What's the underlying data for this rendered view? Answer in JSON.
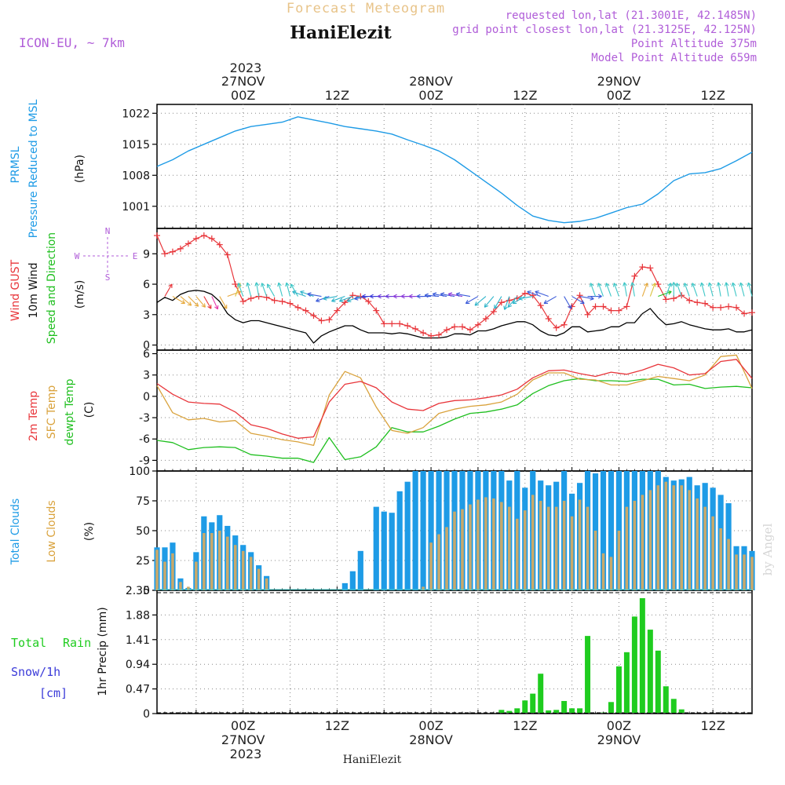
{
  "header": {
    "product": "Forecast Meteogram",
    "location": "HaniElezit",
    "model": "ICON-EU, ~ 7km",
    "requested": "requested lon,lat (21.3001E, 42.1485N)",
    "gridpoint": "grid point closest lon,lat (21.3125E, 42.125N)",
    "point_altitude": "Point Altitude 375m",
    "model_altitude": "Model Point Altitude 659m",
    "footer_location": "HaniElezit",
    "watermark": "by Angel"
  },
  "time_axis": {
    "top_year": "2023",
    "bottom_year": "2023",
    "labels": [
      {
        "t": 0,
        "hour": "00Z",
        "date": "27NOV"
      },
      {
        "t": 12,
        "hour": "12Z",
        "date": ""
      },
      {
        "t": 24,
        "hour": "00Z",
        "date": "28NOV"
      },
      {
        "t": 36,
        "hour": "12Z",
        "date": ""
      },
      {
        "t": 48,
        "hour": "00Z",
        "date": "29NOV"
      },
      {
        "t": 60,
        "hour": "12Z",
        "date": ""
      }
    ],
    "t_min": -11,
    "t_max": 65
  },
  "colors": {
    "pressure": "#1e9be6",
    "gust": "#e8353a",
    "wind": "#000000",
    "t2m": "#e8353a",
    "sfc": "#d9a23c",
    "dewpt": "#1fbf1f",
    "total_clouds": "#1e9be6",
    "low_clouds": "#c9a96a",
    "rain": "#1fcc1f",
    "snow": "#3b3bd9",
    "meta": "#b05dd8",
    "title_orange": "#e8c48a",
    "label_green": "#1fbf1f"
  },
  "panel_labels": {
    "pressure": [
      "PRMSL",
      "Pressure Reduced to MSL",
      "(hPa)"
    ],
    "wind": [
      "Wind GUST",
      "10m Wind",
      "Speed and Direction",
      "(m/s)"
    ],
    "compass": [
      "N",
      "W",
      "E",
      "S"
    ],
    "temp": [
      "2m Temp",
      "SFC Temp",
      "dewpt Temp",
      "(C)"
    ],
    "clouds": [
      "Total Clouds",
      "Low Clouds",
      "(%)"
    ],
    "precip_left": [
      "Total",
      "Rain",
      "Snow/1h",
      "[cm]"
    ],
    "precip_axis": "1hr Precip (mm)"
  },
  "chart_data": [
    {
      "type": "line",
      "name": "pressure",
      "ylim": [
        996,
        1024
      ],
      "yticks": [
        "1001",
        "1008",
        "1015",
        "1022"
      ],
      "x": [
        -11,
        -9,
        -7,
        -5,
        -3,
        -1,
        1,
        3,
        5,
        7,
        9,
        11,
        13,
        15,
        17,
        19,
        21,
        23,
        25,
        27,
        29,
        31,
        33,
        35,
        37,
        39,
        41,
        43,
        45,
        47,
        49,
        51,
        53,
        55,
        57,
        59,
        61,
        63,
        65
      ],
      "values": [
        1010,
        1011.5,
        1013.5,
        1015,
        1016.5,
        1018,
        1019,
        1019.5,
        1020,
        1021.2,
        1020.5,
        1019.8,
        1019,
        1018.5,
        1018,
        1017.3,
        1016,
        1014.8,
        1013.5,
        1011.5,
        1009,
        1006.5,
        1004,
        1001.2,
        998.8,
        997.8,
        997.3,
        997.6,
        998.3,
        999.5,
        1000.7,
        1001.5,
        1003.8,
        1006.8,
        1008.3,
        1008.6,
        1009.5,
        1011.3,
        1013.2
      ]
    },
    {
      "type": "line",
      "name": "wind",
      "ylim": [
        -0.5,
        11.5
      ],
      "yticks": [
        "0",
        "3",
        "6",
        "9"
      ],
      "gust": {
        "x": [
          -11,
          -10,
          -9,
          -8,
          -7,
          -6,
          -5,
          -4,
          -3,
          -2,
          -1,
          0,
          1,
          2,
          3,
          4,
          5,
          6,
          7,
          8,
          9,
          10,
          11,
          12,
          13,
          14,
          15,
          16,
          17,
          18,
          19,
          20,
          21,
          22,
          23,
          24,
          25,
          26,
          27,
          28,
          29,
          30,
          31,
          32,
          33,
          34,
          35,
          36,
          37,
          38,
          39,
          40,
          41,
          42,
          43,
          44,
          45,
          46,
          47,
          48,
          49,
          50,
          51,
          52,
          53,
          54,
          55,
          56,
          57,
          58,
          59,
          60,
          61,
          62,
          63,
          64,
          65
        ],
        "values": [
          10.8,
          9,
          9.2,
          9.5,
          10,
          10.5,
          10.8,
          10.5,
          9.9,
          8.9,
          6,
          4.3,
          4.6,
          4.8,
          4.7,
          4.4,
          4.3,
          4.1,
          3.7,
          3.4,
          2.9,
          2.4,
          2.5,
          3.4,
          4.2,
          4.9,
          4.8,
          4.3,
          3.4,
          2.1,
          2.1,
          2.1,
          1.9,
          1.6,
          1.2,
          0.9,
          1,
          1.5,
          1.8,
          1.8,
          1.5,
          2,
          2.6,
          3.3,
          4.2,
          4.4,
          4.6,
          5.1,
          4.9,
          3.9,
          2.6,
          1.7,
          2,
          3.8,
          4.9,
          3,
          3.8,
          3.8,
          3.4,
          3.4,
          3.8,
          6.8,
          7.7,
          7.6,
          6,
          4.5,
          4.6,
          4.9,
          4.4,
          4.2,
          4.1,
          3.7,
          3.7,
          3.8,
          3.7,
          3.1,
          3.2
        ]
      },
      "speed": {
        "x": [
          -11,
          -10,
          -9,
          -8,
          -7,
          -6,
          -5,
          -4,
          -3,
          -2,
          -1,
          0,
          1,
          2,
          3,
          4,
          5,
          6,
          7,
          8,
          9,
          10,
          11,
          12,
          13,
          14,
          15,
          16,
          17,
          18,
          19,
          20,
          21,
          22,
          23,
          24,
          25,
          26,
          27,
          28,
          29,
          30,
          31,
          32,
          33,
          34,
          35,
          36,
          37,
          38,
          39,
          40,
          41,
          42,
          43,
          44,
          45,
          46,
          47,
          48,
          49,
          50,
          51,
          52,
          53,
          54,
          55,
          56,
          57,
          58,
          59,
          60,
          61,
          62,
          63,
          64,
          65
        ],
        "values": [
          4.2,
          4.7,
          4.4,
          5,
          5.3,
          5.4,
          5.3,
          5,
          4.3,
          3.1,
          2.5,
          2.2,
          2.4,
          2.4,
          2.2,
          2,
          1.8,
          1.6,
          1.4,
          1.2,
          0.2,
          0.9,
          1.3,
          1.6,
          1.9,
          1.9,
          1.5,
          1.2,
          1.2,
          1.2,
          1.1,
          1.2,
          1.1,
          0.9,
          0.7,
          0.7,
          0.7,
          0.8,
          1.1,
          1.1,
          1,
          1.4,
          1.4,
          1.6,
          1.9,
          2.1,
          2.3,
          2.3,
          2,
          1.4,
          1,
          0.9,
          1.2,
          1.8,
          1.8,
          1.3,
          1.4,
          1.5,
          1.8,
          1.8,
          2.2,
          2.2,
          3.1,
          3.6,
          2.7,
          2,
          2.1,
          2.3,
          2,
          1.8,
          1.6,
          1.5,
          1.5,
          1.6,
          1.3,
          1.3,
          1.5
        ]
      },
      "arrows": {
        "x": [
          -10,
          -9,
          -8,
          -7,
          -6,
          -5,
          -4,
          -3,
          -2,
          -1,
          0,
          1,
          2,
          3,
          4,
          5,
          6,
          7,
          8,
          9,
          10,
          11,
          12,
          13,
          14,
          15,
          16,
          17,
          18,
          19,
          20,
          21,
          22,
          23,
          24,
          25,
          26,
          27,
          28,
          29,
          30,
          31,
          32,
          33,
          34,
          35,
          36,
          37,
          38,
          39,
          40,
          41,
          42,
          43,
          44,
          45,
          46,
          47,
          48,
          49,
          50,
          51,
          52,
          53,
          54,
          55,
          56,
          57,
          58,
          59,
          60,
          61,
          62,
          63,
          64,
          65
        ],
        "dir": [
          210,
          300,
          310,
          315,
          320,
          330,
          335,
          330,
          250,
          200,
          160,
          165,
          170,
          160,
          150,
          165,
          165,
          150,
          110,
          110,
          100,
          70,
          80,
          70,
          70,
          70,
          80,
          90,
          90,
          90,
          90,
          90,
          90,
          90,
          90,
          95,
          100,
          100,
          100,
          100,
          60,
          50,
          40,
          30,
          20,
          40,
          60,
          80,
          110,
          110,
          60,
          330,
          300,
          280,
          270,
          160,
          160,
          160,
          160,
          170,
          170,
          200,
          200,
          250,
          200,
          180,
          160,
          160,
          160,
          165,
          165,
          170,
          170,
          165,
          165,
          165
        ],
        "color": [
          "#e8353a",
          "#e6a93c",
          "#e6a93c",
          "#e6a93c",
          "#e6a93c",
          "#e8353a",
          "#e63aa9",
          "#e6a93c",
          "#e6a93c",
          "#d9c23c",
          "#3cc6c6",
          "#3cc6c6",
          "#3cc6c6",
          "#3cc6c6",
          "#3cc6c6",
          "#3cc6c6",
          "#3cc6c6",
          "#3cc6c6",
          "#2bb3c9",
          "#2bb3c9",
          "#3b5bd9",
          "#3b5bd9",
          "#2bb3c9",
          "#2bb3c9",
          "#2bb3c9",
          "#2bb3c9",
          "#3b5bd9",
          "#3b3bd9",
          "#3b3bd9",
          "#6a3bd9",
          "#6a3bd9",
          "#8a3bd9",
          "#8a3bd9",
          "#8a3bd9",
          "#3b5bd9",
          "#3b5bd9",
          "#3b5bd9",
          "#3b5bd9",
          "#8a3bd9",
          "#3b5bd9",
          "#3b5bd9",
          "#2bb3c9",
          "#2bb3c9",
          "#2bb3c9",
          "#2bb3c9",
          "#2bb3c9",
          "#2bb3c9",
          "#2bb3c9",
          "#3b5bd9",
          "#3b5bd9",
          "#3b5bd9",
          "#3b5bd9",
          "#3b5bd9",
          "#3b5bd9",
          "#3b5bd9",
          "#3cc6c6",
          "#3cc6c6",
          "#3cc6c6",
          "#3cc6c6",
          "#3cc6c6",
          "#3cc6c6",
          "#e6a93c",
          "#d9c23c",
          "#1fbf1f",
          "#3cc6c6",
          "#3cc6c6",
          "#3cc6c6",
          "#3cc6c6",
          "#3cc6c6",
          "#3cc6c6",
          "#3cc6c6",
          "#3cc6c6",
          "#3cc6c6",
          "#3cc6c6",
          "#3cc6c6",
          "#3cc6c6"
        ]
      }
    },
    {
      "type": "line",
      "name": "temperature",
      "ylim": [
        -10.5,
        6.5
      ],
      "yticks": [
        "-9",
        "-6",
        "-3",
        "0",
        "3",
        "6"
      ],
      "x": [
        -11,
        -9,
        -7,
        -5,
        -3,
        -1,
        1,
        3,
        5,
        7,
        9,
        11,
        13,
        15,
        17,
        19,
        21,
        23,
        25,
        27,
        29,
        31,
        33,
        35,
        37,
        39,
        41,
        43,
        45,
        47,
        49,
        51,
        53,
        55,
        57,
        59,
        61,
        63,
        65
      ],
      "t2m": [
        1.8,
        0.3,
        -0.8,
        -1,
        -1.1,
        -2.2,
        -4,
        -4.5,
        -5.3,
        -5.9,
        -5.7,
        -0.8,
        1.7,
        2.1,
        1.2,
        -0.8,
        -1.8,
        -2,
        -1,
        -0.6,
        -0.5,
        -0.2,
        0.2,
        1,
        2.6,
        3.6,
        3.7,
        3.2,
        2.8,
        3.4,
        3.1,
        3.7,
        4.5,
        4,
        3,
        3.2,
        4.9,
        5.2,
        2.5
      ],
      "sfc": [
        1.5,
        -2.3,
        -3.3,
        -3.1,
        -3.6,
        -3.4,
        -5.2,
        -5.6,
        -6.1,
        -6.4,
        -6.9,
        0.2,
        3.5,
        2.6,
        -1.5,
        -4.8,
        -5.2,
        -4.4,
        -2.4,
        -1.8,
        -1.4,
        -1.2,
        -0.8,
        0.3,
        2.3,
        3.3,
        3.3,
        2.4,
        2.3,
        1.6,
        1.6,
        2.2,
        2.8,
        2.5,
        2.2,
        3,
        5.6,
        5.8,
        1.1
      ],
      "dewpt": [
        -6.2,
        -6.5,
        -7.5,
        -7.2,
        -7.1,
        -7.2,
        -8.2,
        -8.4,
        -8.7,
        -8.7,
        -9.3,
        -5.8,
        -8.9,
        -8.5,
        -7.1,
        -4.4,
        -5,
        -5,
        -4.2,
        -3.2,
        -2.4,
        -2.2,
        -1.8,
        -1.2,
        0.4,
        1.5,
        2.2,
        2.5,
        2.2,
        2.2,
        2.1,
        2.4,
        2.4,
        1.6,
        1.7,
        1.1,
        1.3,
        1.4,
        1.2
      ]
    },
    {
      "type": "bar",
      "name": "clouds",
      "ylim": [
        0,
        100
      ],
      "yticks": [
        "0",
        "25",
        "50",
        "75",
        "100"
      ],
      "x": [
        -11,
        -10,
        -9,
        -8,
        -7,
        -6,
        -5,
        -4,
        -3,
        -2,
        -1,
        0,
        1,
        2,
        3,
        4,
        5,
        6,
        7,
        8,
        9,
        10,
        11,
        12,
        13,
        14,
        15,
        16,
        17,
        18,
        19,
        20,
        21,
        22,
        23,
        24,
        25,
        26,
        27,
        28,
        29,
        30,
        31,
        32,
        33,
        34,
        35,
        36,
        37,
        38,
        39,
        40,
        41,
        42,
        43,
        44,
        45,
        46,
        47,
        48,
        49,
        50,
        51,
        52,
        53,
        54,
        55,
        56,
        57,
        58,
        59,
        60,
        61,
        62,
        63,
        64,
        65
      ],
      "total": [
        36,
        36,
        40,
        10,
        2,
        32,
        62,
        57,
        63,
        54,
        46,
        38,
        32,
        21,
        12,
        0,
        0,
        0,
        0,
        0,
        0,
        0,
        0,
        0,
        6,
        16,
        33,
        0,
        70,
        66,
        65,
        83,
        91,
        100,
        100,
        100,
        100,
        100,
        100,
        100,
        100,
        100,
        100,
        100,
        100,
        92,
        100,
        86,
        100,
        92,
        88,
        91,
        100,
        81,
        90,
        100,
        98,
        100,
        100,
        100,
        100,
        100,
        100,
        100,
        100,
        95,
        92,
        93,
        95,
        88,
        90,
        86,
        80,
        73,
        37,
        37,
        33
      ],
      "low": [
        34,
        24,
        31,
        7,
        3,
        24,
        48,
        48,
        50,
        45,
        38,
        33,
        28,
        18,
        10,
        0,
        0,
        0,
        0,
        0,
        0,
        0,
        0,
        0,
        0,
        0,
        0,
        0,
        0,
        0,
        0,
        0,
        0,
        0,
        3,
        40,
        47,
        53,
        66,
        68,
        72,
        76,
        78,
        77,
        74,
        70,
        60,
        67,
        80,
        75,
        70,
        70,
        75,
        62,
        76,
        70,
        50,
        31,
        28,
        50,
        70,
        75,
        80,
        84,
        88,
        91,
        88,
        88,
        84,
        77,
        70,
        62,
        52,
        43,
        30,
        30,
        28
      ]
    },
    {
      "type": "bar",
      "name": "precipitation",
      "ylim": [
        0,
        2.35
      ],
      "yticks": [
        "0",
        "0.47",
        "0.94",
        "1.41",
        "1.88",
        "2.35"
      ],
      "x": [
        -11,
        -10,
        -9,
        -8,
        -7,
        -6,
        -5,
        -4,
        -3,
        -2,
        -1,
        0,
        1,
        2,
        3,
        4,
        5,
        6,
        7,
        8,
        9,
        10,
        11,
        12,
        13,
        14,
        15,
        16,
        17,
        18,
        19,
        20,
        21,
        22,
        23,
        24,
        25,
        26,
        27,
        28,
        29,
        30,
        31,
        32,
        33,
        34,
        35,
        36,
        37,
        38,
        39,
        40,
        41,
        42,
        43,
        44,
        45,
        46,
        47,
        48,
        49,
        50,
        51,
        52,
        53,
        54,
        55,
        56,
        57,
        58,
        59,
        60,
        61,
        62,
        63,
        64,
        65
      ],
      "rain": [
        0,
        0,
        0,
        0,
        0,
        0,
        0,
        0,
        0,
        0,
        0,
        0,
        0,
        0,
        0,
        0,
        0,
        0,
        0,
        0,
        0,
        0,
        0,
        0,
        0,
        0,
        0,
        0,
        0,
        0,
        0,
        0,
        0,
        0,
        0,
        0,
        0,
        0,
        0,
        0,
        0,
        0,
        0,
        0,
        0.07,
        0.05,
        0.1,
        0.25,
        0.38,
        0.76,
        0.06,
        0.07,
        0.24,
        0.1,
        0.1,
        1.48,
        0,
        0.02,
        0.22,
        0.9,
        1.17,
        1.85,
        2.2,
        1.6,
        1.2,
        0.52,
        0.28,
        0.08,
        0,
        0,
        0,
        0,
        0,
        0,
        0,
        0,
        0
      ]
    }
  ]
}
